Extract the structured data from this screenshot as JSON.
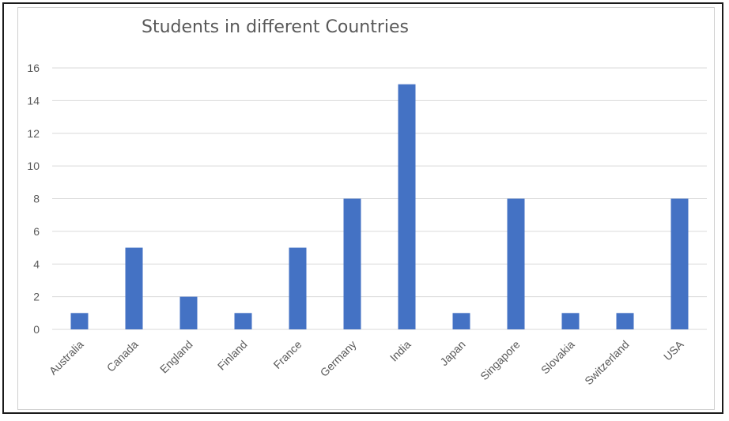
{
  "chart_data": {
    "type": "bar",
    "title": "Students in different Countries",
    "xlabel": "",
    "ylabel": "",
    "categories": [
      "Australia",
      "Canada",
      "England",
      "Finland",
      "France",
      "Germany",
      "India",
      "Japan",
      "Singapore",
      "Slovakia",
      "Switzerland",
      "USA"
    ],
    "values": [
      1,
      5,
      2,
      1,
      5,
      8,
      15,
      1,
      8,
      1,
      1,
      8
    ],
    "ylim": [
      0,
      16
    ],
    "yticks": [
      0,
      2,
      4,
      6,
      8,
      10,
      12,
      14,
      16
    ],
    "grid": true,
    "legend": "none",
    "bar_color": "#4472C4"
  }
}
